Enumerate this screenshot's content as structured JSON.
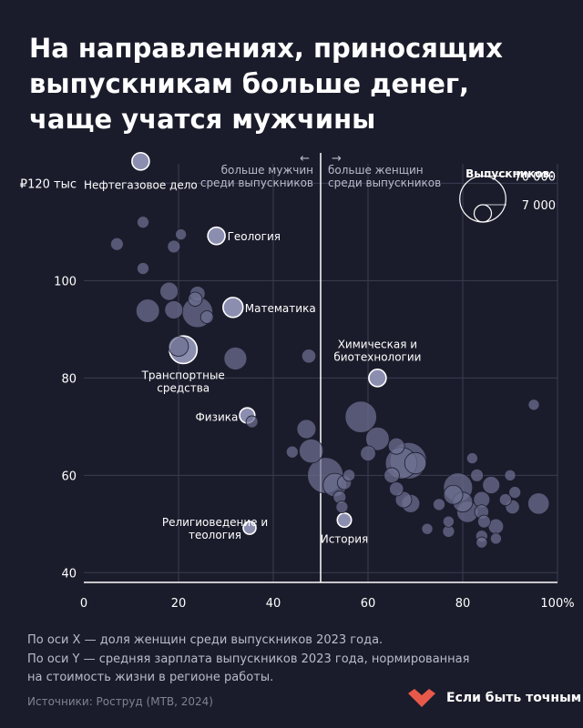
{
  "title_lines": [
    "На направлениях, приносящих",
    "выпускникам больше денег,",
    "чаще учатся мужчины"
  ],
  "divider_left": [
    "больше мужчин",
    "среди выпускников"
  ],
  "divider_right": [
    "больше женщин",
    "среди выпускников"
  ],
  "size_legend": {
    "title": "Выпускников:",
    "big": "70 000",
    "small": "7 000"
  },
  "notes": [
    "По оси X — доля женщин среди выпускников 2023 года.",
    "По оси Y — средняя зарплата выпускников 2023 года, нормированная",
    "на стоимость жизни в регионе работы."
  ],
  "source": "Источники: Роструд (МТВ, 2024)",
  "brand": {
    "name": "Если быть точным",
    "color": "#e8594a"
  },
  "chart_data": {
    "type": "scatter",
    "xlim": [
      0,
      100
    ],
    "ylim": [
      38,
      124
    ],
    "x_ticks": [
      {
        "v": 0,
        "label": "0"
      },
      {
        "v": 20,
        "label": "20"
      },
      {
        "v": 40,
        "label": "40"
      },
      {
        "v": 60,
        "label": "60"
      },
      {
        "v": 80,
        "label": "80"
      },
      {
        "v": 100,
        "label": "100%"
      }
    ],
    "y_ticks": [
      {
        "v": 40,
        "label": "40"
      },
      {
        "v": 60,
        "label": "60"
      },
      {
        "v": 80,
        "label": "80"
      },
      {
        "v": 100,
        "label": "100"
      },
      {
        "v": 120,
        "label": "₽120 тыс"
      }
    ],
    "divider_x": 50,
    "colors": {
      "point": "#6e7092",
      "highlight": "#8c8eb0",
      "background": "#1b1c2b"
    },
    "points": [
      {
        "x": 12,
        "y": 124.5,
        "n": 7000,
        "label": "Нефтегазовое дело",
        "hl": true
      },
      {
        "x": 28,
        "y": 109.2,
        "n": 7000,
        "label": "Геология",
        "hl": true
      },
      {
        "x": 31.5,
        "y": 94.5,
        "n": 10000,
        "label": "Математика",
        "hl": true
      },
      {
        "x": 21,
        "y": 85.8,
        "n": 22000,
        "label": "Транспортные средства",
        "hl": true
      },
      {
        "x": 62,
        "y": 80,
        "n": 7000,
        "label": "Химическая и биотехнологии",
        "hl": true
      },
      {
        "x": 34.5,
        "y": 72.3,
        "n": 5000,
        "label": "Физика",
        "hl": true
      },
      {
        "x": 35,
        "y": 49.2,
        "n": 3000,
        "label": "Религиоведение и теология",
        "hl": true
      },
      {
        "x": 55,
        "y": 50.8,
        "n": 4000,
        "label": "История",
        "hl": true
      },
      {
        "x": 7,
        "y": 107.5,
        "n": 3000
      },
      {
        "x": 12.5,
        "y": 112,
        "n": 2500
      },
      {
        "x": 19,
        "y": 107,
        "n": 3000
      },
      {
        "x": 20.5,
        "y": 109.5,
        "n": 2000
      },
      {
        "x": 12.5,
        "y": 102.5,
        "n": 2500
      },
      {
        "x": 18,
        "y": 97.8,
        "n": 8000
      },
      {
        "x": 23.5,
        "y": 96.2,
        "n": 4000
      },
      {
        "x": 24,
        "y": 97.3,
        "n": 5000
      },
      {
        "x": 13.5,
        "y": 93.8,
        "n": 15000
      },
      {
        "x": 19,
        "y": 94,
        "n": 8000
      },
      {
        "x": 24,
        "y": 93.5,
        "n": 28000
      },
      {
        "x": 26,
        "y": 92.5,
        "n": 3000
      },
      {
        "x": 20,
        "y": 86.5,
        "n": 10000
      },
      {
        "x": 32,
        "y": 84,
        "n": 14000
      },
      {
        "x": 47.5,
        "y": 84.5,
        "n": 4000
      },
      {
        "x": 35.5,
        "y": 71,
        "n": 2500
      },
      {
        "x": 47,
        "y": 69.5,
        "n": 9000
      },
      {
        "x": 44,
        "y": 64.8,
        "n": 2500
      },
      {
        "x": 48,
        "y": 65,
        "n": 16000
      },
      {
        "x": 58.5,
        "y": 72,
        "n": 30000
      },
      {
        "x": 62,
        "y": 67.5,
        "n": 15000
      },
      {
        "x": 60,
        "y": 64.5,
        "n": 5000
      },
      {
        "x": 51,
        "y": 60,
        "n": 40000
      },
      {
        "x": 53,
        "y": 58,
        "n": 15000
      },
      {
        "x": 55,
        "y": 58.5,
        "n": 4000
      },
      {
        "x": 56,
        "y": 60,
        "n": 2500
      },
      {
        "x": 54,
        "y": 55.5,
        "n": 3000
      },
      {
        "x": 54.5,
        "y": 53.5,
        "n": 2500
      },
      {
        "x": 66,
        "y": 66,
        "n": 6000
      },
      {
        "x": 67,
        "y": 62.5,
        "n": 30000
      },
      {
        "x": 68.5,
        "y": 63,
        "n": 42000
      },
      {
        "x": 70,
        "y": 62.5,
        "n": 12000
      },
      {
        "x": 65,
        "y": 60,
        "n": 5000
      },
      {
        "x": 66,
        "y": 57.2,
        "n": 4000
      },
      {
        "x": 67.5,
        "y": 55,
        "n": 6000
      },
      {
        "x": 69,
        "y": 54.2,
        "n": 8000
      },
      {
        "x": 72.5,
        "y": 49,
        "n": 2000
      },
      {
        "x": 75,
        "y": 54,
        "n": 2500
      },
      {
        "x": 77,
        "y": 50.5,
        "n": 2000
      },
      {
        "x": 77,
        "y": 48.5,
        "n": 2500
      },
      {
        "x": 78,
        "y": 56,
        "n": 9000
      },
      {
        "x": 79,
        "y": 57.5,
        "n": 25000
      },
      {
        "x": 80,
        "y": 54.5,
        "n": 10000
      },
      {
        "x": 81,
        "y": 52.5,
        "n": 12000
      },
      {
        "x": 82,
        "y": 63.5,
        "n": 2000
      },
      {
        "x": 83,
        "y": 60,
        "n": 3000
      },
      {
        "x": 84,
        "y": 55,
        "n": 6000
      },
      {
        "x": 84,
        "y": 52.5,
        "n": 4000
      },
      {
        "x": 84.5,
        "y": 50.5,
        "n": 3000
      },
      {
        "x": 84,
        "y": 47.5,
        "n": 2500
      },
      {
        "x": 84,
        "y": 46.2,
        "n": 2000
      },
      {
        "x": 86,
        "y": 58,
        "n": 7000
      },
      {
        "x": 87,
        "y": 49.5,
        "n": 5000
      },
      {
        "x": 87,
        "y": 47,
        "n": 2000
      },
      {
        "x": 89,
        "y": 55,
        "n": 2500
      },
      {
        "x": 90,
        "y": 60,
        "n": 2000
      },
      {
        "x": 90.5,
        "y": 53.5,
        "n": 4000
      },
      {
        "x": 95,
        "y": 74.5,
        "n": 2000
      },
      {
        "x": 96,
        "y": 54.2,
        "n": 12000
      },
      {
        "x": 91,
        "y": 56.5,
        "n": 2500
      }
    ]
  }
}
